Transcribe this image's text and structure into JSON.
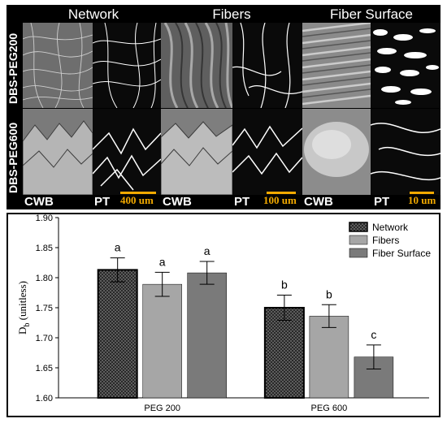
{
  "micrographs": {
    "columns": [
      "Network",
      "Fibers",
      "Fiber Surface"
    ],
    "rows": [
      "DBS-PEG200",
      "DBS-PEG600"
    ],
    "tile_labels": {
      "left": "CWB",
      "right": "PT"
    },
    "scale_bars": [
      "400 um",
      "100 um",
      "10 um"
    ],
    "scale_color": "#f2a900"
  },
  "chart_data": {
    "type": "bar",
    "categories": [
      "PEG 200",
      "PEG 600"
    ],
    "series": [
      {
        "name": "Network",
        "values": [
          1.813,
          1.75
        ],
        "errors": [
          0.02,
          0.021
        ],
        "letters": [
          "a",
          "b"
        ],
        "fill": "#111111",
        "pattern": "crosshatch"
      },
      {
        "name": "Fibers",
        "values": [
          1.789,
          1.736
        ],
        "errors": [
          0.02,
          0.019
        ],
        "letters": [
          "a",
          "b"
        ],
        "fill": "#a6a6a6"
      },
      {
        "name": "Fiber Surface",
        "values": [
          1.808,
          1.668
        ],
        "errors": [
          0.019,
          0.02
        ],
        "letters": [
          "a",
          "c"
        ],
        "fill": "#7a7a7a"
      }
    ],
    "ylabel": "D_b (unitless)",
    "ylim": [
      1.6,
      1.9
    ],
    "yticks": [
      "1.60",
      "1.65",
      "1.70",
      "1.75",
      "1.80",
      "1.85",
      "1.90"
    ],
    "legend_position": "top-right",
    "grid": false
  }
}
